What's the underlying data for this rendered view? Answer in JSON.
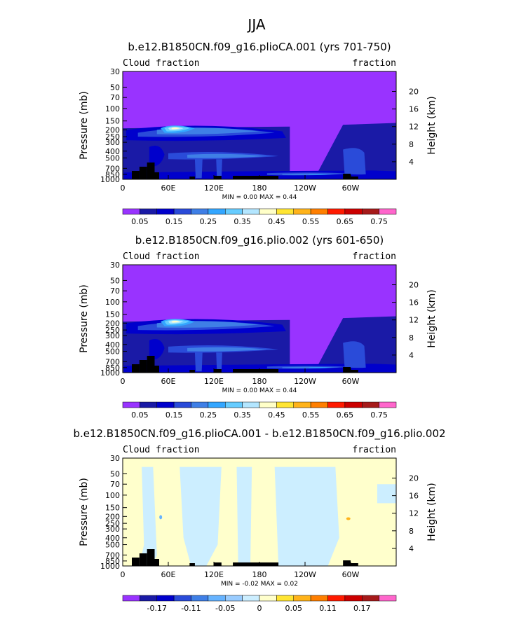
{
  "page_title": "JJA",
  "chart_data": [
    {
      "type": "heatmap",
      "title": "b.e12.B1850CN.f09_g16.plioCA.001 (yrs 701-750)",
      "left_string": "Cloud fraction",
      "right_string": "fraction",
      "xlabel": "",
      "ylabel": "Pressure (mb)",
      "right_label": "Height (km)",
      "x_ticks": [
        "0",
        "60E",
        "120E",
        "180",
        "120W",
        "60W"
      ],
      "y_ticks": [
        "1000",
        "850",
        "700",
        "500",
        "400",
        "300",
        "250",
        "200",
        "150",
        "100",
        "70",
        "50",
        "30"
      ],
      "height_ticks": [
        "4",
        "8",
        "12",
        "16",
        "20"
      ],
      "minmax": "MIN =    0.00   MAX =    0.44",
      "min": 0.0,
      "max": 0.44,
      "colorbar_labels": [
        "0.05",
        "0.15",
        "0.25",
        "0.35",
        "0.45",
        "0.55",
        "0.65",
        "0.75"
      ],
      "palette": "cloud"
    },
    {
      "type": "heatmap",
      "title": "b.e12.B1850CN.f09_g16.plio.002 (yrs 601-650)",
      "left_string": "Cloud fraction",
      "right_string": "fraction",
      "xlabel": "",
      "ylabel": "Pressure (mb)",
      "right_label": "Height (km)",
      "x_ticks": [
        "0",
        "60E",
        "120E",
        "180",
        "120W",
        "60W"
      ],
      "y_ticks": [
        "1000",
        "850",
        "700",
        "500",
        "400",
        "300",
        "250",
        "200",
        "150",
        "100",
        "70",
        "50",
        "30"
      ],
      "height_ticks": [
        "4",
        "8",
        "12",
        "16",
        "20"
      ],
      "minmax": "MIN =    0.00   MAX =    0.44",
      "min": 0.0,
      "max": 0.44,
      "colorbar_labels": [
        "0.05",
        "0.15",
        "0.25",
        "0.35",
        "0.45",
        "0.55",
        "0.65",
        "0.75"
      ],
      "palette": "cloud"
    },
    {
      "type": "heatmap",
      "title": "b.e12.B1850CN.f09_g16.plioCA.001 - b.e12.B1850CN.f09_g16.plio.002",
      "left_string": "Cloud fraction",
      "right_string": "fraction",
      "xlabel": "",
      "ylabel": "Pressure (mb)",
      "right_label": "Height (km)",
      "x_ticks": [
        "0",
        "60E",
        "120E",
        "180",
        "120W",
        "60W"
      ],
      "y_ticks": [
        "1000",
        "850",
        "700",
        "500",
        "400",
        "300",
        "250",
        "200",
        "150",
        "100",
        "70",
        "50",
        "30"
      ],
      "height_ticks": [
        "4",
        "8",
        "12",
        "16",
        "20"
      ],
      "minmax": "MIN =   -0.02   MAX =    0.02",
      "min": -0.02,
      "max": 0.02,
      "colorbar_labels": [
        "-0.17",
        "-0.11",
        "-0.05",
        "0",
        "0.05",
        "0.11",
        "0.17"
      ],
      "palette": "diff"
    }
  ],
  "colors": {
    "cloud": [
      "#9933ff",
      "#1a1aa6",
      "#0000cc",
      "#2a4bd9",
      "#3f7fe6",
      "#33a6ff",
      "#66ccff",
      "#b3e6ff",
      "#ffffc8",
      "#ffe533",
      "#ffb31a",
      "#ff7f00",
      "#ff1a00",
      "#cc0000",
      "#a61a1a",
      "#ff66cc"
    ],
    "diff": [
      "#9933ff",
      "#1a1aa6",
      "#0000cc",
      "#2a4bd9",
      "#3f7fe6",
      "#66b3ff",
      "#99ccff",
      "#cceeff",
      "#ffffcc",
      "#ffe533",
      "#ffb31a",
      "#ff7f00",
      "#ff1a00",
      "#cc0000",
      "#a61a1a",
      "#ff66cc"
    ],
    "terrain": "#000000"
  }
}
